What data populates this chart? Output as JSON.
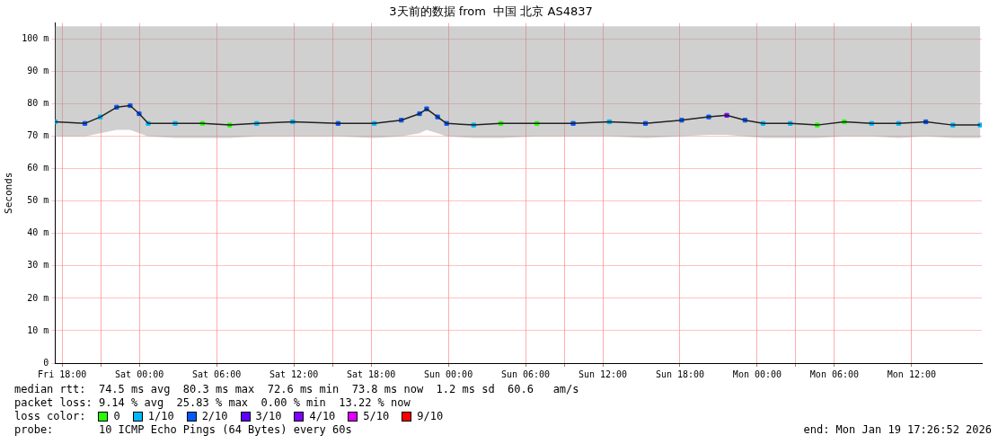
{
  "chart_data": {
    "type": "line",
    "title": "3天前的数据 from  中国 北京 AS4837",
    "ylabel": "Seconds",
    "legend_title": "loss color:",
    "legend": "bottom",
    "grid": true,
    "marker": "square",
    "xlim": [
      "2026-01-16T17:27",
      "2026-01-19T17:27"
    ],
    "ylim": [
      0,
      105
    ],
    "xticks": [
      {
        "value": "2026-01-16T18:00",
        "label": "Fri 18:00"
      },
      {
        "value": "2026-01-16T21:00",
        "label": null
      },
      {
        "value": "2026-01-17T00:00",
        "label": "Sat 00:00"
      },
      {
        "value": "2026-01-17T06:00",
        "label": "Sat 06:00"
      },
      {
        "value": "2026-01-17T12:00",
        "label": "Sat 12:00"
      },
      {
        "value": "2026-01-17T15:00",
        "label": null
      },
      {
        "value": "2026-01-17T18:00",
        "label": "Sat 18:00"
      },
      {
        "value": "2026-01-18T00:00",
        "label": "Sun 00:00"
      },
      {
        "value": "2026-01-18T06:00",
        "label": "Sun 06:00"
      },
      {
        "value": "2026-01-18T09:00",
        "label": null
      },
      {
        "value": "2026-01-18T12:00",
        "label": "Sun 12:00"
      },
      {
        "value": "2026-01-18T18:00",
        "label": "Sun 18:00"
      },
      {
        "value": "2026-01-19T00:00",
        "label": "Mon 00:00"
      },
      {
        "value": "2026-01-19T03:00",
        "label": null
      },
      {
        "value": "2026-01-19T06:00",
        "label": "Mon 06:00"
      },
      {
        "value": "2026-01-19T12:00",
        "label": "Mon 12:00"
      }
    ],
    "yticks": [
      0,
      {
        "value": 10,
        "label": "10 m"
      },
      {
        "value": 20,
        "label": "20 m"
      },
      {
        "value": 30,
        "label": "30 m"
      },
      {
        "value": 40,
        "label": "40 m"
      },
      {
        "value": 50,
        "label": "50 m"
      },
      {
        "value": 60,
        "label": "60 m"
      },
      {
        "value": 70,
        "label": "70 m"
      },
      {
        "value": 80,
        "label": "80 m"
      },
      {
        "value": 90,
        "label": "90 m"
      },
      {
        "value": 100,
        "label": "100 m"
      }
    ],
    "series": [
      {
        "color": "#222222",
        "marker": "none",
        "x": [
          "2026-01-16T17:27",
          "2026-01-16T19:46",
          "2026-01-16T20:58",
          "2026-01-16T22:14",
          "2026-01-16T23:17",
          "2026-01-16T23:59",
          "2026-01-17T00:41",
          "2026-01-17T02:47",
          "2026-01-17T04:54",
          "2026-01-17T07:01",
          "2026-01-17T09:07",
          "2026-01-17T11:55",
          "2026-01-17T15:26",
          "2026-01-17T18:15",
          "2026-01-17T20:21",
          "2026-01-17T21:46",
          "2026-01-17T22:19",
          "2026-01-17T23:10",
          "2026-01-17T23:52",
          "2026-01-18T01:58",
          "2026-01-18T04:05",
          "2026-01-18T06:53",
          "2026-01-18T09:42",
          "2026-01-18T12:31",
          "2026-01-18T15:19",
          "2026-01-18T18:08",
          "2026-01-18T20:14",
          "2026-01-18T21:38",
          "2026-01-18T23:03",
          "2026-01-19T00:27",
          "2026-01-19T02:34",
          "2026-01-19T04:40",
          "2026-01-19T06:46",
          "2026-01-19T08:53",
          "2026-01-19T10:59",
          "2026-01-19T13:06",
          "2026-01-19T15:12",
          "2026-01-19T17:19"
        ],
        "values": [
          74.5,
          74,
          76,
          79,
          79.5,
          77,
          74,
          74,
          74,
          73.5,
          74,
          74.5,
          74,
          74,
          75,
          77,
          78.5,
          76,
          74,
          73.5,
          74,
          74,
          74,
          74.5,
          74,
          75,
          76,
          76.5,
          75,
          74,
          74,
          73.5,
          74.5,
          74,
          74,
          74.5,
          73.5,
          73.5
        ],
        "lower": [
          70,
          70,
          71,
          72,
          72,
          71,
          70,
          69.5,
          69.5,
          69.5,
          70,
          70,
          70,
          69.5,
          70,
          71,
          72,
          71,
          70,
          69.5,
          69.5,
          70,
          70,
          70,
          69.5,
          70,
          70.5,
          70.5,
          70,
          69.5,
          69.5,
          69.5,
          70,
          70,
          69.5,
          70,
          69.5,
          69.5
        ],
        "upper": [
          104,
          104,
          104,
          104,
          104,
          104,
          104,
          104,
          104,
          104,
          104,
          104,
          104,
          104,
          104,
          104,
          104,
          104,
          104,
          104,
          104,
          104,
          104,
          104,
          104,
          104,
          104,
          104,
          104,
          104,
          104,
          104,
          104,
          104,
          104,
          104,
          104,
          104
        ]
      },
      {
        "type": "scatter",
        "name": "0",
        "color": "#26ff00",
        "x": [
          "2026-01-17T04:54",
          "2026-01-17T07:01",
          "2026-01-18T04:05",
          "2026-01-18T06:53",
          "2026-01-19T04:40",
          "2026-01-19T06:46"
        ],
        "values": [
          74,
          73.5,
          74,
          74,
          73.5,
          74.5
        ]
      },
      {
        "type": "scatter",
        "name": "1/10",
        "color": "#00b8ff",
        "x": [
          "2026-01-16T17:27",
          "2026-01-16T20:58",
          "2026-01-17T00:41",
          "2026-01-17T02:47",
          "2026-01-17T09:07",
          "2026-01-17T11:55",
          "2026-01-17T18:15",
          "2026-01-18T01:58",
          "2026-01-18T12:31",
          "2026-01-19T00:27",
          "2026-01-19T02:34",
          "2026-01-19T08:53",
          "2026-01-19T10:59",
          "2026-01-19T15:12",
          "2026-01-19T17:19"
        ],
        "values": [
          74.5,
          76,
          74,
          74,
          74,
          74.5,
          74,
          73.5,
          74.5,
          74,
          74,
          74,
          74,
          73.5,
          73.5
        ]
      },
      {
        "type": "scatter",
        "name": "2/10",
        "color": "#0059ff",
        "x": [
          "2026-01-16T19:46",
          "2026-01-16T22:14",
          "2026-01-16T23:17",
          "2026-01-16T23:59",
          "2026-01-17T15:26",
          "2026-01-17T20:21",
          "2026-01-17T21:46",
          "2026-01-17T22:19",
          "2026-01-17T23:10",
          "2026-01-17T23:52",
          "2026-01-18T09:42",
          "2026-01-18T15:19",
          "2026-01-18T18:08",
          "2026-01-18T20:14",
          "2026-01-18T23:03",
          "2026-01-19T13:06"
        ],
        "values": [
          74,
          79,
          79.5,
          77,
          74,
          75,
          77,
          78.5,
          76,
          74,
          74,
          74,
          75,
          76,
          75,
          74.5
        ]
      },
      {
        "type": "scatter",
        "name": "3/10",
        "color": "#5e00ff"
      },
      {
        "type": "scatter",
        "name": "4/10",
        "color": "#7e00ff",
        "x": [
          "2026-01-18T21:38"
        ],
        "values": [
          76.5
        ]
      },
      {
        "type": "scatter",
        "name": "5/10",
        "color": "#dd00ff"
      },
      {
        "type": "scatter",
        "name": "9/10",
        "color": "#ff0000"
      }
    ],
    "annotations": [
      "median rtt:  74.5 ms avg  80.3 ms max  72.6 ms min  73.8 ms now  1.2 ms sd  60.6   am/s",
      "packet loss: 9.14 % avg  25.83 % max  0.00 % min  13.22 % now",
      "probe:       10 ICMP Echo Pings (64 Bytes) every 60s",
      "end: Mon Jan 19 17:26:52 2026"
    ]
  }
}
